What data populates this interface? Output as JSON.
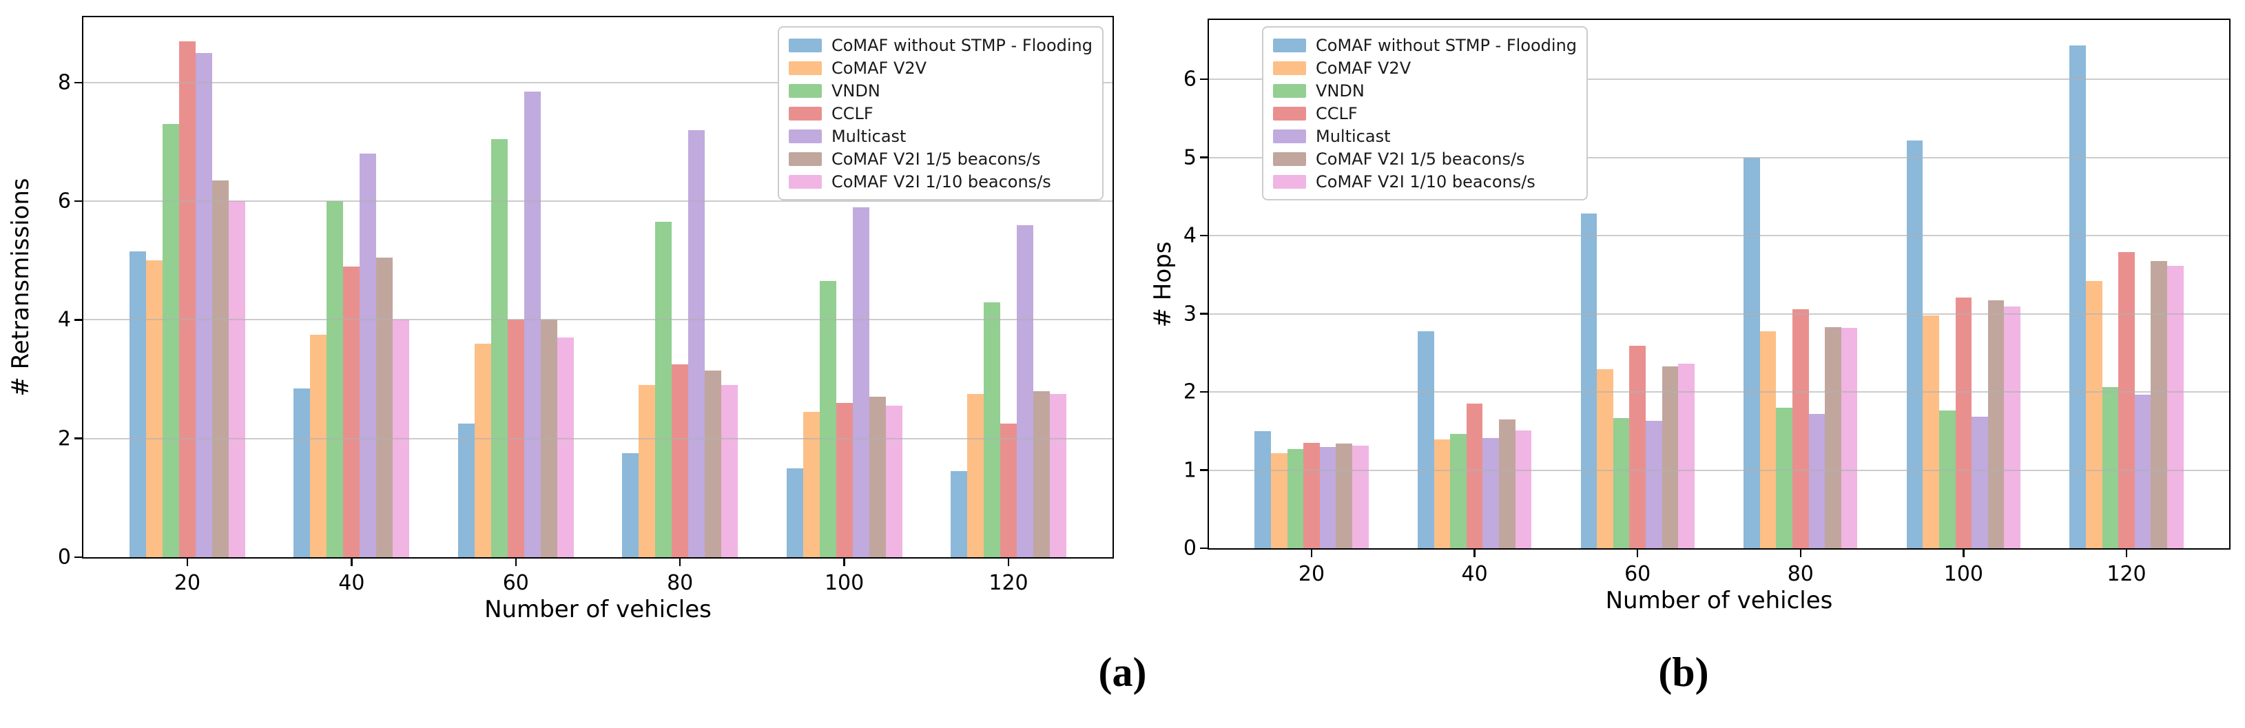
{
  "page": {
    "background": "#ffffff",
    "grid_color": "#b0b0b0",
    "axis_color": "#000000"
  },
  "captions": {
    "a": "(a)",
    "b": "(b)"
  },
  "chart_data": [
    {
      "panel": "a",
      "type": "bar",
      "title": "",
      "xlabel": "Number of vehicles",
      "ylabel": "# Retransmissions",
      "categories": [
        "20",
        "40",
        "60",
        "80",
        "100",
        "120"
      ],
      "ylim": [
        0,
        9.1
      ],
      "yticks": [
        0,
        2,
        4,
        6,
        8
      ],
      "grid": true,
      "legend_position": "top-right",
      "series": [
        {
          "name": "CoMAF without STMP - Flooding",
          "color": "#8cb8d9",
          "values": [
            5.15,
            2.85,
            2.25,
            1.75,
            1.5,
            1.45
          ]
        },
        {
          "name": "CoMAF V2V",
          "color": "#fdbf86",
          "values": [
            5.0,
            3.75,
            3.6,
            2.9,
            2.45,
            2.75
          ]
        },
        {
          "name": "VNDN",
          "color": "#92cf91",
          "values": [
            7.3,
            6.0,
            7.05,
            5.65,
            4.65,
            4.3
          ]
        },
        {
          "name": "CCLF",
          "color": "#e9908f",
          "values": [
            8.7,
            4.9,
            4.0,
            3.25,
            2.6,
            2.25
          ]
        },
        {
          "name": "Multicast",
          "color": "#c0aade",
          "values": [
            8.5,
            6.8,
            7.85,
            7.2,
            5.9,
            5.6
          ]
        },
        {
          "name": "CoMAF V2I 1/5 beacons/s",
          "color": "#c1a69e",
          "values": [
            6.35,
            5.05,
            4.0,
            3.15,
            2.7,
            2.8
          ]
        },
        {
          "name": "CoMAF V2I 1/10 beacons/s",
          "color": "#f0b5e3",
          "values": [
            6.0,
            4.0,
            3.7,
            2.9,
            2.55,
            2.75
          ]
        }
      ]
    },
    {
      "panel": "b",
      "type": "bar",
      "title": "",
      "xlabel": "Number of vehicles",
      "ylabel": "# Hops",
      "categories": [
        "20",
        "40",
        "60",
        "80",
        "100",
        "120"
      ],
      "ylim": [
        0,
        6.76
      ],
      "yticks": [
        0,
        1,
        2,
        3,
        4,
        5,
        6
      ],
      "grid": true,
      "legend_position": "top-left",
      "series": [
        {
          "name": "CoMAF without STMP - Flooding",
          "color": "#8cb8d9",
          "values": [
            1.5,
            2.78,
            4.28,
            5.0,
            5.22,
            6.43
          ]
        },
        {
          "name": "CoMAF V2V",
          "color": "#fdbf86",
          "values": [
            1.22,
            1.39,
            2.29,
            2.78,
            2.98,
            3.42
          ]
        },
        {
          "name": "VNDN",
          "color": "#92cf91",
          "values": [
            1.27,
            1.46,
            1.67,
            1.8,
            1.76,
            2.06
          ]
        },
        {
          "name": "CCLF",
          "color": "#e9908f",
          "values": [
            1.35,
            1.85,
            2.59,
            3.06,
            3.21,
            3.79
          ]
        },
        {
          "name": "Multicast",
          "color": "#c0aade",
          "values": [
            1.3,
            1.41,
            1.63,
            1.72,
            1.68,
            1.97
          ]
        },
        {
          "name": "CoMAF V2I 1/5 beacons/s",
          "color": "#c1a69e",
          "values": [
            1.34,
            1.65,
            2.33,
            2.83,
            3.17,
            3.68
          ]
        },
        {
          "name": "CoMAF V2I 1/10 beacons/s",
          "color": "#f0b5e3",
          "values": [
            1.31,
            1.51,
            2.36,
            2.82,
            3.09,
            3.61
          ]
        }
      ]
    }
  ]
}
